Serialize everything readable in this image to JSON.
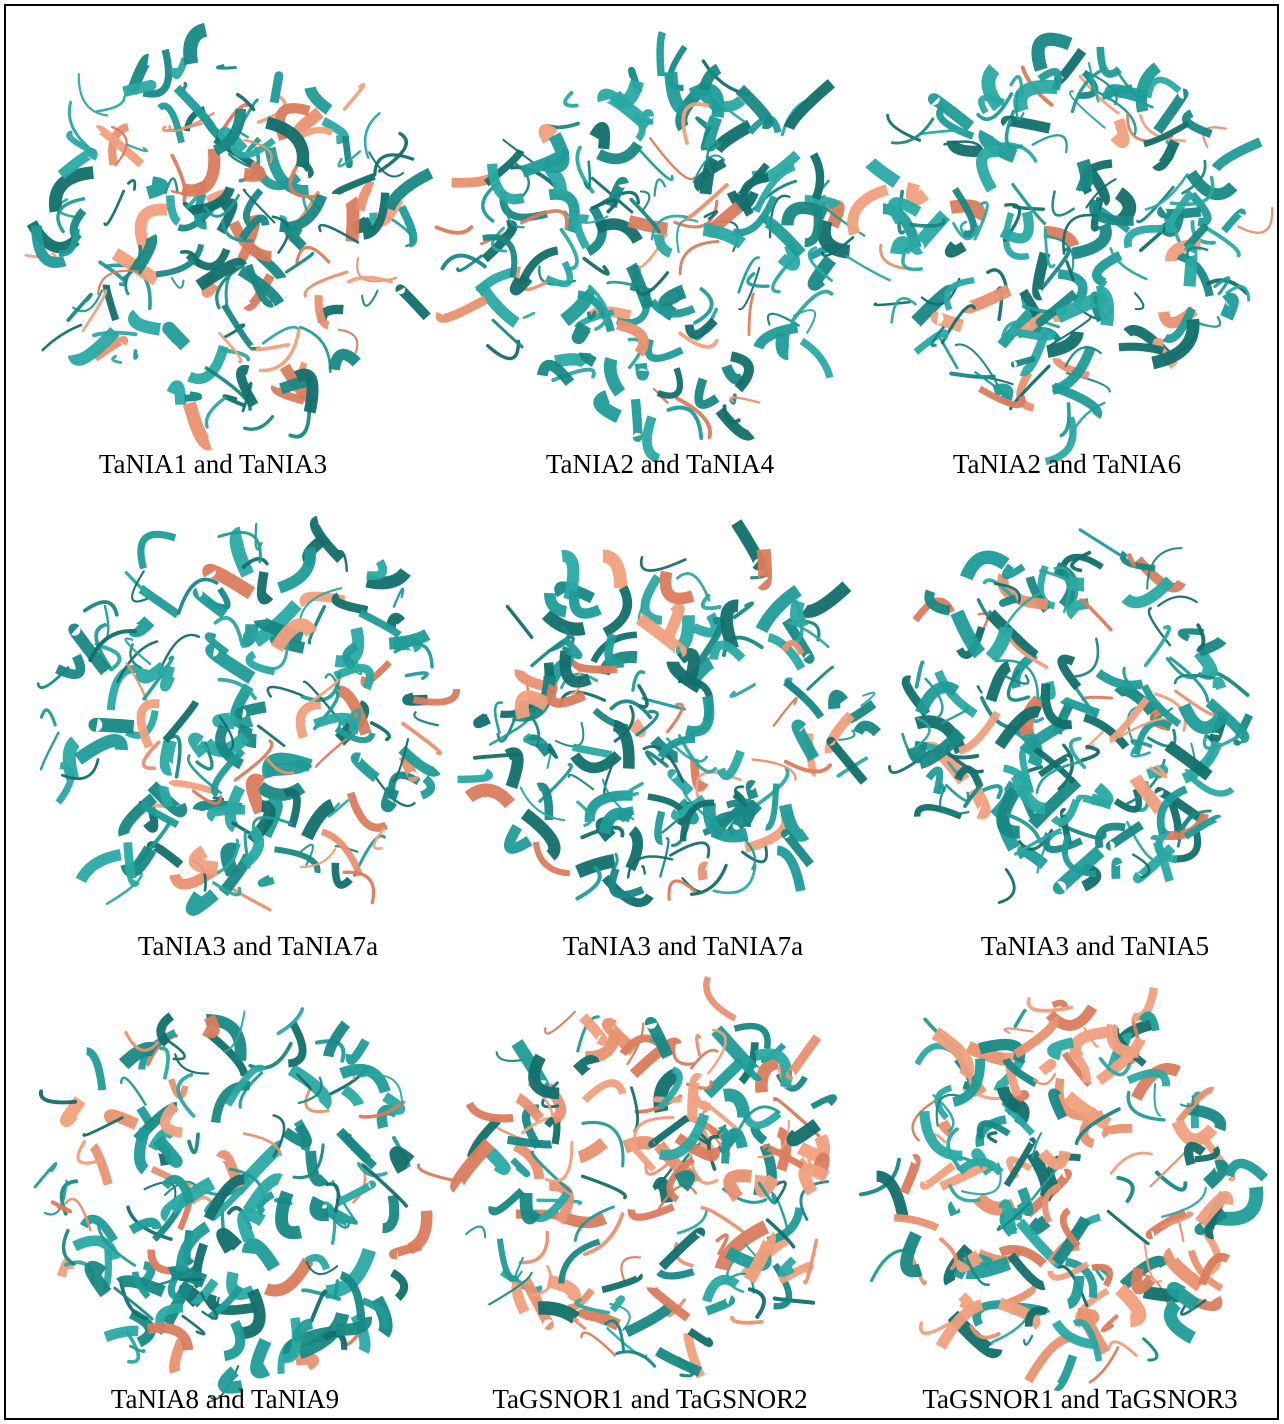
{
  "panels": [
    {
      "label": "TaNIA1 and TaNIA3"
    },
    {
      "label": "TaNIA2 and TaNIA4"
    },
    {
      "label": "TaNIA2 and TaNIA6"
    },
    {
      "label": "TaNIA3 and TaNIA7a"
    },
    {
      "label": "TaNIA3 and TaNIA7a"
    },
    {
      "label": "TaNIA3 and TaNIA5"
    },
    {
      "label": "TaNIA8 and TaNIA9"
    },
    {
      "label": "TaGSNOR1 and TaGSNOR2"
    },
    {
      "label": "TaGSNOR1 and TaGSNOR3"
    }
  ]
}
